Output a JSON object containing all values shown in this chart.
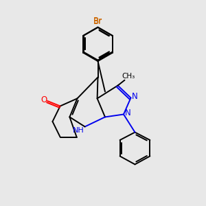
{
  "background_color": "#e8e8e8",
  "atom_colors": {
    "N": "#0000ee",
    "O": "#ff0000",
    "Br": "#cc6600",
    "C": "#000000"
  },
  "bond_color": "#000000",
  "figsize": [
    3.0,
    3.0
  ],
  "dpi": 100,
  "lw": 1.4
}
